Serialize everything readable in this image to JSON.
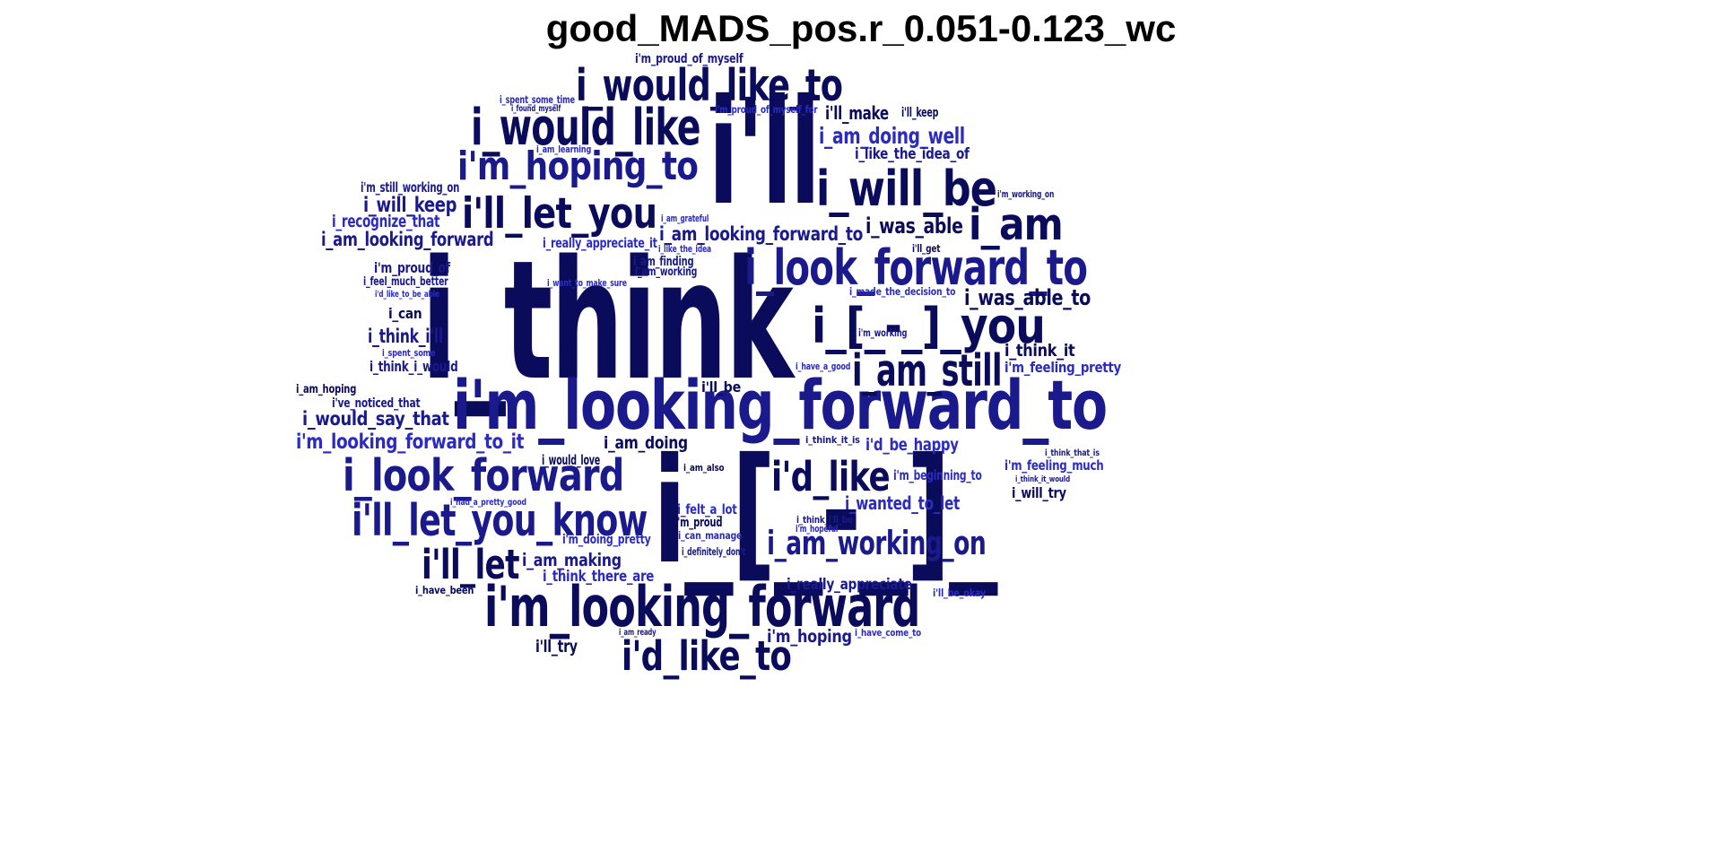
{
  "title": "good_MADS_pos.r_0.051-0.123_wc",
  "colors": {
    "dark": "#0b0b5c",
    "mid": "#1a1a8c",
    "bright": "#2b2bc2"
  },
  "words": [
    {
      "text": "i_think",
      "tone": "dark"
    },
    {
      "text": "i'll",
      "tone": "dark"
    },
    {
      "text": "i_[_-_]_",
      "tone": "dark"
    },
    {
      "text": "i'm_looking_forward_to",
      "tone": "mid"
    },
    {
      "text": "i'm_looking_forward",
      "tone": "dark"
    },
    {
      "text": "i_look_forward_to",
      "tone": "mid"
    },
    {
      "text": "i_would_like_to",
      "tone": "dark"
    },
    {
      "text": "i_would_like",
      "tone": "dark"
    },
    {
      "text": "i'm_hoping_to",
      "tone": "mid"
    },
    {
      "text": "i_will_be",
      "tone": "dark"
    },
    {
      "text": "i'll_let_you",
      "tone": "dark"
    },
    {
      "text": "i_am",
      "tone": "dark"
    },
    {
      "text": "i_[_-_]_you",
      "tone": "dark"
    },
    {
      "text": "i_am_still",
      "tone": "dark"
    },
    {
      "text": "i_look_forward",
      "tone": "mid"
    },
    {
      "text": "i'll_let_you_know",
      "tone": "mid"
    },
    {
      "text": "i'd_like",
      "tone": "dark"
    },
    {
      "text": "i'll_let",
      "tone": "dark"
    },
    {
      "text": "i'd_like_to",
      "tone": "dark"
    },
    {
      "text": "i_am_working_on",
      "tone": "mid"
    },
    {
      "text": "i_am_doing_well",
      "tone": "bright"
    },
    {
      "text": "i_was_able",
      "tone": "dark"
    },
    {
      "text": "i_was_able_to",
      "tone": "dark"
    },
    {
      "text": "i_am_looking_forward_to",
      "tone": "mid"
    },
    {
      "text": "i_am_looking_forward",
      "tone": "mid"
    },
    {
      "text": "i_will_keep",
      "tone": "mid"
    },
    {
      "text": "i_recognize_that",
      "tone": "bright"
    },
    {
      "text": "i'm_still_working_on",
      "tone": "mid"
    },
    {
      "text": "i_like_the_idea_of",
      "tone": "mid"
    },
    {
      "text": "i'll_make",
      "tone": "dark"
    },
    {
      "text": "i'll_keep",
      "tone": "dark"
    },
    {
      "text": "i'm_proud_of_myself",
      "tone": "mid"
    },
    {
      "text": "i'm_proud_of_myself_for",
      "tone": "bright"
    },
    {
      "text": "i_spent_some_time",
      "tone": "bright"
    },
    {
      "text": "i_found_myself",
      "tone": "mid"
    },
    {
      "text": "i_am_learning",
      "tone": "bright"
    },
    {
      "text": "i'm_working_on",
      "tone": "mid"
    },
    {
      "text": "i_am_grateful",
      "tone": "bright"
    },
    {
      "text": "i_really_appreciate_it",
      "tone": "bright"
    },
    {
      "text": "i_like_the_idea",
      "tone": "bright"
    },
    {
      "text": "i'll_get",
      "tone": "dark"
    },
    {
      "text": "i_am_finding",
      "tone": "mid"
    },
    {
      "text": "i_am_working",
      "tone": "mid"
    },
    {
      "text": "i'm_proud_of",
      "tone": "mid"
    },
    {
      "text": "i_feel_much_better",
      "tone": "mid"
    },
    {
      "text": "i_want_to_make_sure",
      "tone": "bright"
    },
    {
      "text": "i'd_like_to_be_able",
      "tone": "bright"
    },
    {
      "text": "i_made_the_decision_to",
      "tone": "bright"
    },
    {
      "text": "i_can",
      "tone": "dark"
    },
    {
      "text": "i_think_i'll",
      "tone": "mid"
    },
    {
      "text": "i'm_working",
      "tone": "mid"
    },
    {
      "text": "i_spent_some",
      "tone": "bright"
    },
    {
      "text": "i_think_i_would",
      "tone": "mid"
    },
    {
      "text": "i_think_it",
      "tone": "dark"
    },
    {
      "text": "i'm_feeling_pretty",
      "tone": "bright"
    },
    {
      "text": "i_have_a_good",
      "tone": "bright"
    },
    {
      "text": "i_am_hoping",
      "tone": "dark"
    },
    {
      "text": "i'll_be",
      "tone": "dark"
    },
    {
      "text": "i've_noticed_that",
      "tone": "mid"
    },
    {
      "text": "i_would_say_that",
      "tone": "mid"
    },
    {
      "text": "i'm_looking_forward_to_it",
      "tone": "bright"
    },
    {
      "text": "i_am_doing",
      "tone": "dark"
    },
    {
      "text": "i_think_it_is",
      "tone": "mid"
    },
    {
      "text": "i'd_be_happy",
      "tone": "bright"
    },
    {
      "text": "i_think_that_is",
      "tone": "mid"
    },
    {
      "text": "i_would_love",
      "tone": "dark"
    },
    {
      "text": "i_am_also",
      "tone": "dark"
    },
    {
      "text": "i'm_beginning_to",
      "tone": "bright"
    },
    {
      "text": "i'm_feeling_much",
      "tone": "bright"
    },
    {
      "text": "i_think_it_would",
      "tone": "mid"
    },
    {
      "text": "i_will_try",
      "tone": "dark"
    },
    {
      "text": "i_had_a_pretty_good",
      "tone": "bright"
    },
    {
      "text": "i_wanted_to_let",
      "tone": "bright"
    },
    {
      "text": "i_felt_a_lot",
      "tone": "bright"
    },
    {
      "text": "i'm_proud",
      "tone": "dark"
    },
    {
      "text": "i_can_manage",
      "tone": "bright"
    },
    {
      "text": "i'm_doing_pretty",
      "tone": "bright"
    },
    {
      "text": "i_definitely_don't",
      "tone": "mid"
    },
    {
      "text": "i_think_i'll_be",
      "tone": "mid"
    },
    {
      "text": "i'm_hopeful",
      "tone": "bright"
    },
    {
      "text": "i_am_making",
      "tone": "mid"
    },
    {
      "text": "i_think_there_are",
      "tone": "bright"
    },
    {
      "text": "i_have_been",
      "tone": "dark"
    },
    {
      "text": "i_really_appreciate",
      "tone": "mid"
    },
    {
      "text": "i'll_be_okay",
      "tone": "bright"
    },
    {
      "text": "i'm_hoping",
      "tone": "mid"
    },
    {
      "text": "i_am_ready",
      "tone": "mid"
    },
    {
      "text": "i_have_come_to",
      "tone": "bright"
    },
    {
      "text": "i'll_try",
      "tone": "dark"
    }
  ]
}
